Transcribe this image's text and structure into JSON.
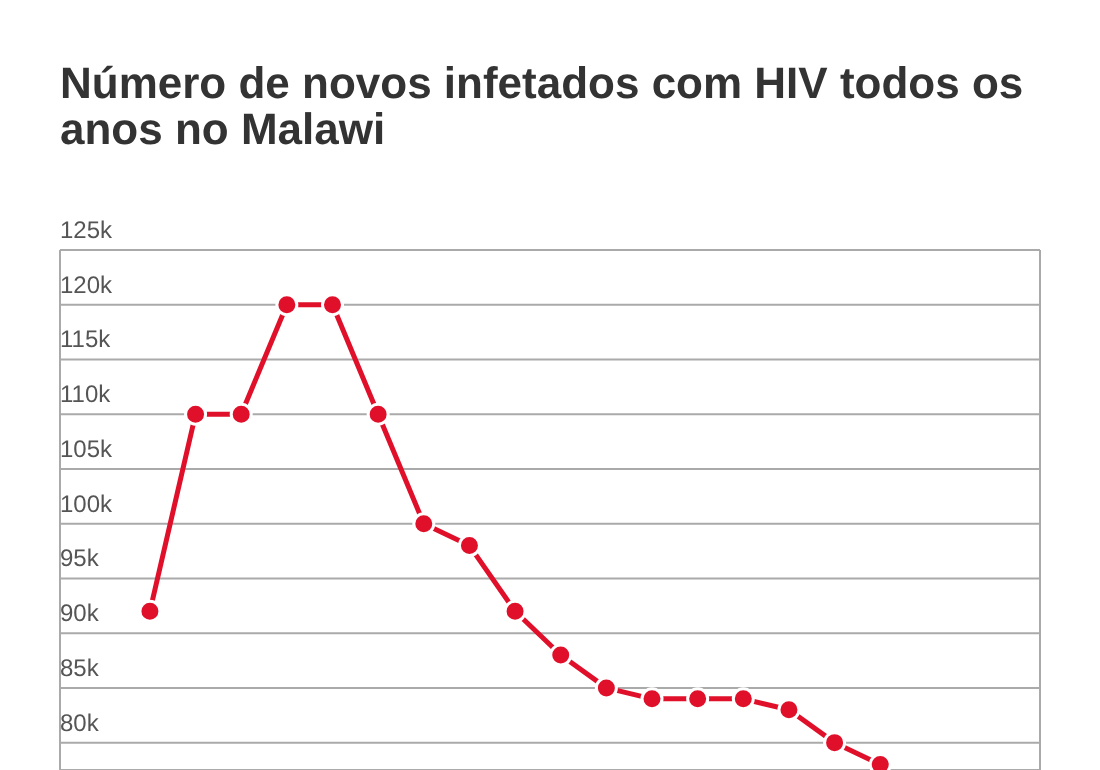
{
  "chart_data": {
    "type": "line",
    "title": "Número de novos infetados com HIV todos os anos no Malawi",
    "categories": [
      null,
      null,
      null,
      null,
      null,
      null,
      null,
      null,
      null,
      null,
      null,
      null,
      null,
      null,
      null,
      null,
      null,
      null,
      null,
      null
    ],
    "series": [
      {
        "color": "#e0102a",
        "values": [
          92000,
          110000,
          110000,
          120000,
          120000,
          110000,
          100000,
          98000,
          92000,
          88000,
          85000,
          84000,
          84000,
          84000,
          83000,
          80000,
          78000,
          null,
          null,
          null
        ]
      }
    ],
    "ylim": [
      77500,
      125000
    ],
    "yticks": [
      {
        "value": 80000,
        "label": "80k"
      },
      {
        "value": 85000,
        "label": "85k"
      },
      {
        "value": 90000,
        "label": "90k"
      },
      {
        "value": 95000,
        "label": "95k"
      },
      {
        "value": 100000,
        "label": "100k"
      },
      {
        "value": 105000,
        "label": "105k"
      },
      {
        "value": 110000,
        "label": "110k"
      },
      {
        "value": 115000,
        "label": "115k"
      },
      {
        "value": 120000,
        "label": "120k"
      },
      {
        "value": 125000,
        "label": "125k"
      }
    ],
    "grid": true,
    "tick_labels": "y",
    "marker": "circle",
    "line_style": "solid",
    "legend": false
  }
}
